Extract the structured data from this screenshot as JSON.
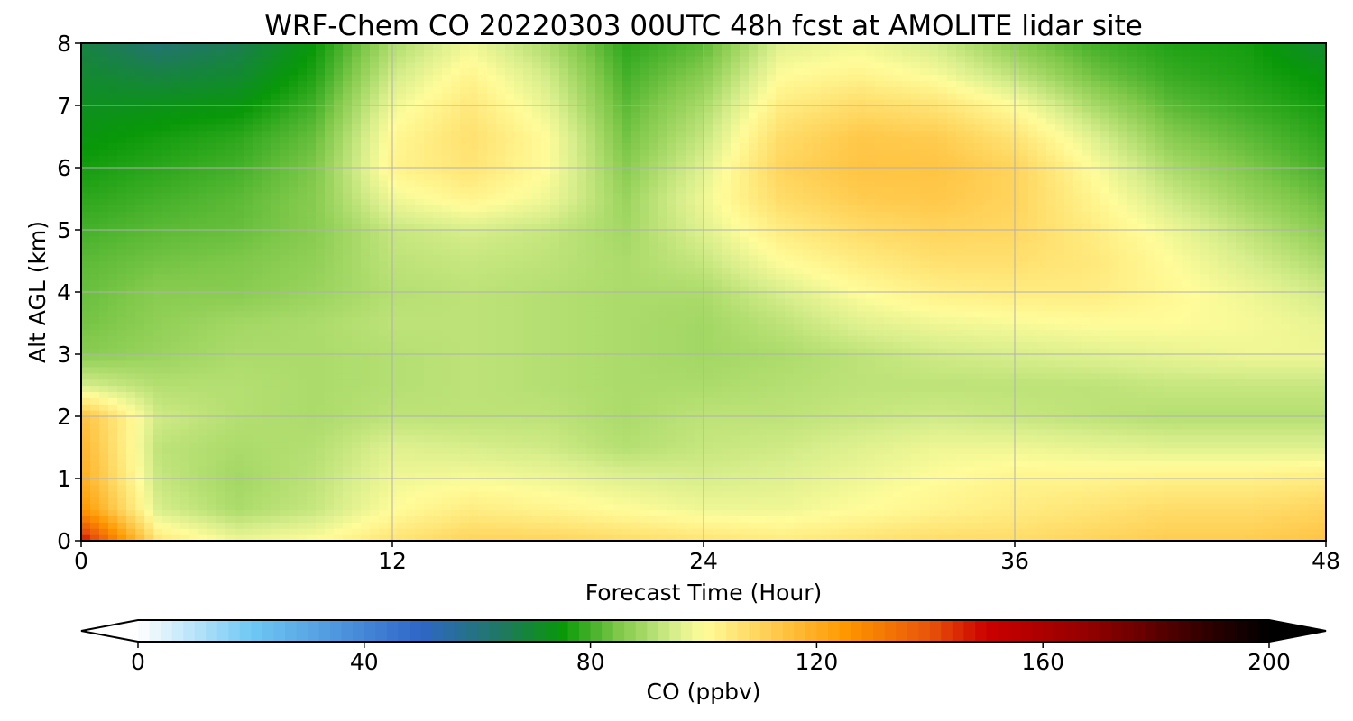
{
  "chart_data": {
    "type": "heatmap",
    "title": "WRF-Chem CO  20220303 00UTC 48h fcst at AMOLITE lidar site",
    "xlabel": "Forecast Time (Hour)",
    "ylabel": "Alt AGL (km)",
    "xlim": [
      0,
      48
    ],
    "ylim": [
      0,
      8
    ],
    "x_ticks": [
      0,
      12,
      24,
      36,
      48
    ],
    "y_ticks": [
      0,
      1,
      2,
      3,
      4,
      5,
      6,
      7,
      8
    ],
    "grid": true,
    "x_hours": [
      0,
      3,
      6,
      9,
      12,
      15,
      18,
      21,
      24,
      27,
      30,
      33,
      36,
      39,
      42,
      45,
      48
    ],
    "y_km": [
      0,
      0.5,
      1,
      1.5,
      2,
      2.5,
      3,
      3.5,
      4,
      4.5,
      5,
      5.5,
      6,
      6.5,
      7,
      7.5,
      8
    ],
    "values_ppbv": [
      [
        150,
        105,
        98,
        100,
        106,
        110,
        110,
        108,
        106,
        104,
        106,
        108,
        108,
        110,
        112,
        112,
        114
      ],
      [
        126,
        95,
        90,
        93,
        100,
        104,
        102,
        100,
        98,
        98,
        100,
        102,
        104,
        106,
        108,
        108,
        110
      ],
      [
        120,
        93,
        89,
        92,
        98,
        99,
        98,
        96,
        95,
        96,
        98,
        100,
        102,
        102,
        103,
        103,
        104
      ],
      [
        118,
        92,
        90,
        91,
        96,
        95,
        94,
        91,
        93,
        94,
        96,
        98,
        98,
        97,
        96,
        96,
        96
      ],
      [
        115,
        94,
        91,
        90,
        92,
        92,
        92,
        90,
        92,
        92,
        93,
        94,
        93,
        92,
        91,
        91,
        91
      ],
      [
        95,
        91,
        91,
        90,
        91,
        92,
        91,
        90,
        90,
        91,
        92,
        92,
        92,
        92,
        93,
        93,
        93
      ],
      [
        86,
        88,
        90,
        90,
        91,
        92,
        91,
        90,
        89,
        90,
        92,
        94,
        95,
        96,
        97,
        98,
        98
      ],
      [
        84,
        87,
        89,
        90,
        92,
        92,
        91,
        90,
        89,
        92,
        96,
        98,
        99,
        100,
        100,
        99,
        97
      ],
      [
        83,
        86,
        86,
        88,
        91,
        92,
        91,
        90,
        90,
        95,
        100,
        103,
        104,
        104,
        101,
        98,
        94
      ],
      [
        82,
        84,
        85,
        87,
        92,
        93,
        92,
        90,
        93,
        100,
        104,
        107,
        107,
        105,
        100,
        95,
        90
      ],
      [
        80,
        82,
        83,
        86,
        93,
        95,
        93,
        89,
        96,
        104,
        108,
        110,
        109,
        104,
        98,
        92,
        86
      ],
      [
        78,
        80,
        82,
        86,
        98,
        102,
        98,
        88,
        98,
        108,
        112,
        113,
        110,
        102,
        94,
        88,
        83
      ],
      [
        76,
        78,
        80,
        85,
        102,
        106,
        100,
        86,
        96,
        110,
        114,
        114,
        110,
        100,
        90,
        85,
        80
      ],
      [
        74,
        76,
        78,
        83,
        101,
        107,
        100,
        84,
        93,
        108,
        113,
        112,
        106,
        96,
        86,
        82,
        78
      ],
      [
        72,
        73,
        74,
        80,
        98,
        105,
        97,
        82,
        90,
        104,
        108,
        106,
        100,
        90,
        82,
        79,
        76
      ],
      [
        70,
        68,
        70,
        77,
        94,
        102,
        94,
        80,
        86,
        100,
        102,
        99,
        92,
        84,
        79,
        77,
        74
      ],
      [
        68,
        62,
        66,
        75,
        90,
        98,
        90,
        78,
        82,
        96,
        98,
        94,
        86,
        80,
        77,
        76,
        70
      ]
    ],
    "colorbar": {
      "label": "CO  (ppbv)",
      "min": 0,
      "max": 200,
      "ticks": [
        0,
        40,
        80,
        120,
        160,
        200
      ],
      "extend": "both",
      "color_stops": [
        {
          "v": 0,
          "c": "#ffffff"
        },
        {
          "v": 20,
          "c": "#6fc8f4"
        },
        {
          "v": 50,
          "c": "#2f66c8"
        },
        {
          "v": 65,
          "c": "#1e7a5a"
        },
        {
          "v": 75,
          "c": "#089808"
        },
        {
          "v": 85,
          "c": "#7fc84a"
        },
        {
          "v": 95,
          "c": "#d8ee8c"
        },
        {
          "v": 100,
          "c": "#fffc9a"
        },
        {
          "v": 110,
          "c": "#ffd45c"
        },
        {
          "v": 125,
          "c": "#ff9800"
        },
        {
          "v": 140,
          "c": "#e8540a"
        },
        {
          "v": 150,
          "c": "#cc0000"
        },
        {
          "v": 170,
          "c": "#8c0000"
        },
        {
          "v": 190,
          "c": "#2a0000"
        },
        {
          "v": 200,
          "c": "#000000"
        }
      ]
    }
  }
}
